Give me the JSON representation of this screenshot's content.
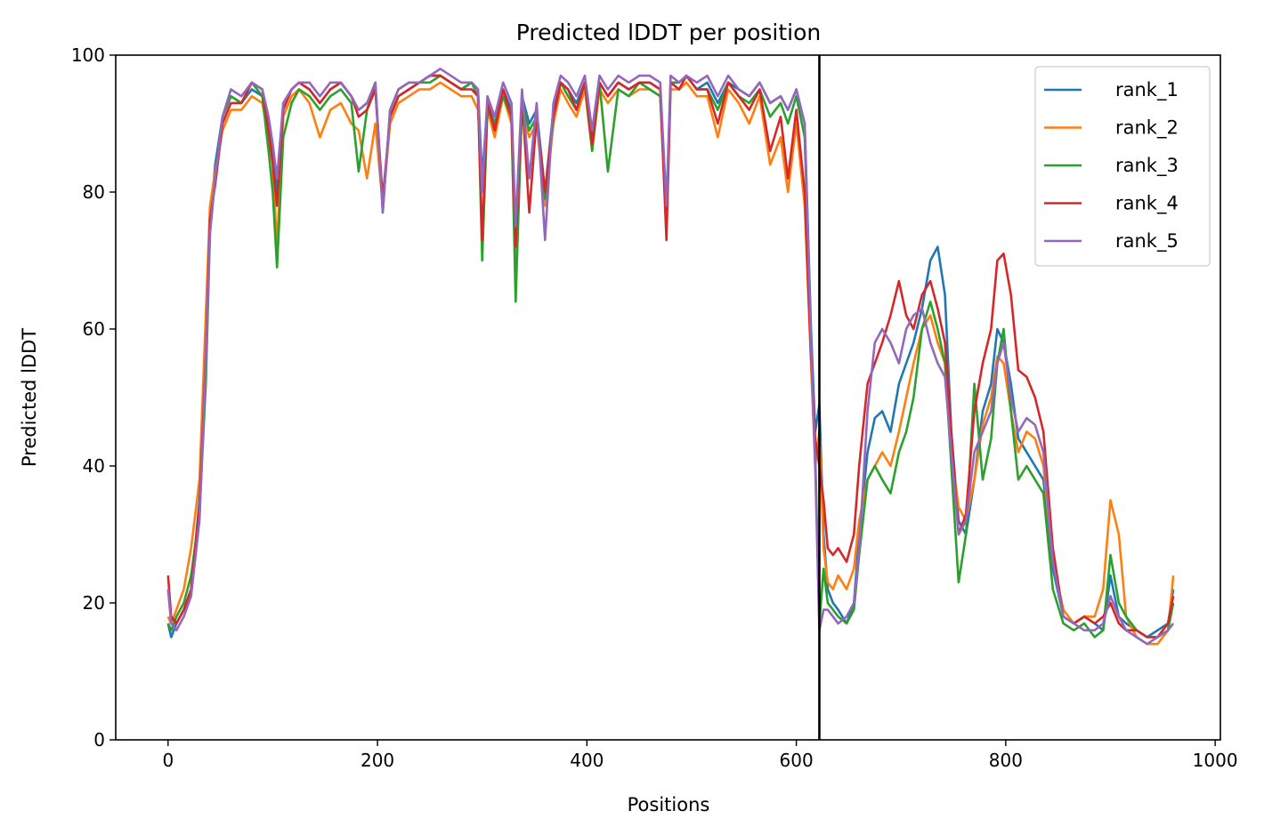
{
  "chart_data": {
    "type": "line",
    "title": "Predicted lDDT per position",
    "xlabel": "Positions",
    "ylabel": "Predicted lDDT",
    "xlim": [
      -50,
      1005
    ],
    "ylim": [
      0,
      100
    ],
    "xticks": [
      0,
      200,
      400,
      600,
      800,
      1000
    ],
    "yticks": [
      0,
      20,
      40,
      60,
      80,
      100
    ],
    "grid": false,
    "legend_position": "top-right",
    "chain_boundary_x": 622,
    "series": [
      {
        "name": "rank_1",
        "color": "#1f77b4",
        "x": [
          0,
          3,
          8,
          15,
          22,
          30,
          36,
          40,
          45,
          52,
          60,
          70,
          80,
          90,
          96,
          100,
          104,
          110,
          118,
          125,
          135,
          145,
          155,
          165,
          175,
          182,
          190,
          198,
          205,
          212,
          220,
          230,
          240,
          250,
          260,
          270,
          280,
          290,
          296,
          300,
          305,
          312,
          320,
          328,
          332,
          338,
          345,
          352,
          360,
          368,
          375,
          382,
          390,
          398,
          405,
          412,
          420,
          430,
          440,
          450,
          460,
          470,
          476,
          480,
          488,
          495,
          505,
          515,
          525,
          535,
          545,
          555,
          565,
          575,
          585,
          592,
          600,
          608,
          614,
          618,
          622,
          626,
          630,
          635,
          640,
          648,
          655,
          660,
          668,
          675,
          682,
          690,
          698,
          705,
          712,
          720,
          728,
          735,
          742,
          748,
          755,
          762,
          770,
          778,
          786,
          792,
          798,
          805,
          812,
          820,
          828,
          836,
          845,
          855,
          865,
          875,
          885,
          893,
          900,
          908,
          915,
          925,
          935,
          945,
          955,
          960
        ],
        "y": [
          17,
          15,
          17,
          19,
          22,
          35,
          55,
          75,
          84,
          91,
          94,
          93,
          95,
          94,
          90,
          86,
          80,
          93,
          95,
          96,
          95,
          93,
          95,
          96,
          94,
          92,
          93,
          95,
          78,
          91,
          94,
          95,
          96,
          97,
          97,
          96,
          95,
          96,
          95,
          82,
          93,
          90,
          95,
          92,
          70,
          94,
          90,
          92,
          80,
          92,
          96,
          95,
          93,
          96,
          88,
          96,
          94,
          96,
          95,
          96,
          96,
          95,
          77,
          96,
          96,
          97,
          95,
          96,
          93,
          96,
          95,
          94,
          96,
          93,
          94,
          92,
          95,
          90,
          60,
          45,
          49,
          30,
          22,
          20,
          19,
          17,
          20,
          30,
          42,
          47,
          48,
          45,
          52,
          55,
          58,
          63,
          70,
          72,
          65,
          45,
          32,
          30,
          38,
          48,
          52,
          60,
          58,
          52,
          44,
          42,
          40,
          38,
          25,
          18,
          17,
          18,
          17,
          16,
          24,
          18,
          17,
          16,
          15,
          16,
          17,
          22
        ]
      },
      {
        "name": "rank_2",
        "color": "#ff7f0e",
        "x": [
          0,
          3,
          8,
          15,
          22,
          30,
          36,
          40,
          45,
          52,
          60,
          70,
          80,
          90,
          96,
          100,
          104,
          110,
          118,
          125,
          135,
          145,
          155,
          165,
          175,
          182,
          190,
          198,
          205,
          212,
          220,
          230,
          240,
          250,
          260,
          270,
          280,
          290,
          296,
          300,
          305,
          312,
          320,
          328,
          332,
          338,
          345,
          352,
          360,
          368,
          375,
          382,
          390,
          398,
          405,
          412,
          420,
          430,
          440,
          450,
          460,
          470,
          476,
          480,
          488,
          495,
          505,
          515,
          525,
          535,
          545,
          555,
          565,
          575,
          585,
          592,
          600,
          608,
          614,
          618,
          622,
          626,
          630,
          635,
          640,
          648,
          655,
          660,
          668,
          675,
          682,
          690,
          698,
          705,
          712,
          720,
          728,
          735,
          742,
          748,
          755,
          762,
          770,
          778,
          786,
          792,
          798,
          805,
          812,
          820,
          828,
          836,
          845,
          855,
          865,
          875,
          885,
          893,
          900,
          908,
          915,
          925,
          935,
          945,
          955,
          960
        ],
        "y": [
          18,
          17,
          19,
          22,
          28,
          38,
          62,
          78,
          83,
          89,
          92,
          92,
          94,
          93,
          88,
          84,
          72,
          91,
          94,
          95,
          93,
          88,
          92,
          93,
          90,
          89,
          82,
          90,
          78,
          90,
          93,
          94,
          95,
          95,
          96,
          95,
          94,
          94,
          92,
          80,
          92,
          88,
          94,
          90,
          68,
          92,
          88,
          90,
          78,
          90,
          95,
          93,
          91,
          95,
          86,
          95,
          93,
          95,
          94,
          95,
          95,
          94,
          75,
          95,
          95,
          96,
          94,
          94,
          88,
          95,
          93,
          90,
          94,
          84,
          88,
          80,
          90,
          78,
          55,
          40,
          45,
          28,
          23,
          22,
          24,
          22,
          25,
          32,
          38,
          40,
          42,
          40,
          45,
          50,
          55,
          60,
          62,
          58,
          55,
          42,
          34,
          32,
          38,
          46,
          50,
          56,
          55,
          48,
          42,
          45,
          44,
          40,
          26,
          19,
          17,
          18,
          18,
          22,
          35,
          30,
          18,
          15,
          14,
          14,
          16,
          24
        ]
      },
      {
        "name": "rank_3",
        "color": "#2ca02c",
        "x": [
          0,
          3,
          8,
          15,
          22,
          30,
          36,
          40,
          45,
          52,
          60,
          70,
          80,
          90,
          96,
          100,
          104,
          110,
          118,
          125,
          135,
          145,
          155,
          165,
          175,
          182,
          190,
          198,
          205,
          212,
          220,
          230,
          240,
          250,
          260,
          270,
          280,
          290,
          296,
          300,
          305,
          312,
          320,
          328,
          332,
          338,
          345,
          352,
          360,
          368,
          375,
          382,
          390,
          398,
          405,
          412,
          420,
          430,
          440,
          450,
          460,
          470,
          476,
          480,
          488,
          495,
          505,
          515,
          525,
          535,
          545,
          555,
          565,
          575,
          585,
          592,
          600,
          608,
          614,
          618,
          622,
          626,
          630,
          635,
          640,
          648,
          655,
          660,
          668,
          675,
          682,
          690,
          698,
          705,
          712,
          720,
          728,
          735,
          742,
          748,
          755,
          762,
          770,
          778,
          786,
          792,
          798,
          805,
          812,
          820,
          828,
          836,
          845,
          855,
          865,
          875,
          885,
          893,
          900,
          908,
          915,
          925,
          935,
          945,
          955,
          960
        ],
        "y": [
          17,
          16,
          18,
          20,
          24,
          33,
          52,
          74,
          82,
          91,
          94,
          93,
          96,
          94,
          86,
          80,
          69,
          88,
          93,
          95,
          94,
          92,
          94,
          95,
          93,
          83,
          92,
          96,
          77,
          92,
          95,
          96,
          96,
          96,
          97,
          96,
          95,
          96,
          94,
          70,
          92,
          90,
          94,
          91,
          64,
          93,
          89,
          91,
          79,
          91,
          96,
          94,
          92,
          96,
          86,
          96,
          83,
          95,
          94,
          96,
          95,
          94,
          76,
          96,
          96,
          97,
          95,
          95,
          92,
          96,
          94,
          93,
          95,
          91,
          93,
          90,
          94,
          88,
          58,
          42,
          17,
          25,
          20,
          19,
          18,
          17,
          19,
          27,
          38,
          40,
          38,
          36,
          42,
          45,
          50,
          60,
          64,
          60,
          55,
          40,
          23,
          30,
          52,
          38,
          44,
          55,
          60,
          48,
          38,
          40,
          38,
          36,
          22,
          17,
          16,
          17,
          15,
          16,
          27,
          20,
          18,
          16,
          15,
          15,
          16,
          20
        ]
      },
      {
        "name": "rank_4",
        "color": "#d62728",
        "x": [
          0,
          3,
          8,
          15,
          22,
          30,
          36,
          40,
          45,
          52,
          60,
          70,
          80,
          90,
          96,
          100,
          104,
          110,
          118,
          125,
          135,
          145,
          155,
          165,
          175,
          182,
          190,
          198,
          205,
          212,
          220,
          230,
          240,
          250,
          260,
          270,
          280,
          290,
          296,
          300,
          305,
          312,
          320,
          328,
          332,
          338,
          345,
          352,
          360,
          368,
          375,
          382,
          390,
          398,
          405,
          412,
          420,
          430,
          440,
          450,
          460,
          470,
          476,
          480,
          488,
          495,
          505,
          515,
          525,
          535,
          545,
          555,
          565,
          575,
          585,
          592,
          600,
          608,
          614,
          618,
          622,
          626,
          630,
          635,
          640,
          648,
          655,
          660,
          668,
          675,
          682,
          690,
          698,
          705,
          712,
          720,
          728,
          735,
          742,
          748,
          755,
          762,
          770,
          778,
          786,
          792,
          798,
          805,
          812,
          820,
          828,
          836,
          845,
          855,
          865,
          875,
          885,
          893,
          900,
          908,
          915,
          925,
          935,
          945,
          955,
          960
        ],
        "y": [
          24,
          18,
          17,
          19,
          22,
          34,
          56,
          76,
          81,
          90,
          93,
          93,
          96,
          95,
          89,
          84,
          78,
          92,
          95,
          96,
          95,
          93,
          95,
          96,
          94,
          91,
          92,
          95,
          79,
          91,
          94,
          95,
          96,
          97,
          97,
          96,
          95,
          95,
          94,
          73,
          93,
          89,
          95,
          91,
          72,
          94,
          77,
          91,
          80,
          91,
          96,
          95,
          92,
          96,
          87,
          96,
          94,
          96,
          95,
          96,
          96,
          95,
          73,
          96,
          95,
          97,
          95,
          95,
          90,
          96,
          94,
          92,
          95,
          86,
          91,
          82,
          92,
          80,
          56,
          44,
          40,
          35,
          28,
          27,
          28,
          26,
          30,
          40,
          52,
          55,
          58,
          62,
          67,
          62,
          60,
          65,
          67,
          63,
          58,
          45,
          30,
          33,
          48,
          55,
          60,
          70,
          71,
          65,
          54,
          53,
          50,
          45,
          28,
          18,
          17,
          18,
          17,
          18,
          20,
          17,
          16,
          16,
          15,
          15,
          17,
          21
        ]
      },
      {
        "name": "rank_5",
        "color": "#9467bd",
        "x": [
          0,
          3,
          8,
          15,
          22,
          30,
          36,
          40,
          45,
          52,
          60,
          70,
          80,
          90,
          96,
          100,
          104,
          110,
          118,
          125,
          135,
          145,
          155,
          165,
          175,
          182,
          190,
          198,
          205,
          212,
          220,
          230,
          240,
          250,
          260,
          270,
          280,
          290,
          296,
          300,
          305,
          312,
          320,
          328,
          332,
          338,
          345,
          352,
          360,
          368,
          375,
          382,
          390,
          398,
          405,
          412,
          420,
          430,
          440,
          450,
          460,
          470,
          476,
          480,
          488,
          495,
          505,
          515,
          525,
          535,
          545,
          555,
          565,
          575,
          585,
          592,
          600,
          608,
          614,
          618,
          622,
          626,
          630,
          635,
          640,
          648,
          655,
          660,
          668,
          675,
          682,
          690,
          698,
          705,
          712,
          720,
          728,
          735,
          742,
          748,
          755,
          762,
          770,
          778,
          786,
          792,
          798,
          805,
          812,
          820,
          828,
          836,
          845,
          855,
          865,
          875,
          885,
          893,
          900,
          908,
          915,
          925,
          935,
          945,
          955,
          960
        ],
        "y": [
          22,
          17,
          16,
          18,
          21,
          32,
          55,
          74,
          82,
          91,
          95,
          94,
          96,
          95,
          91,
          87,
          82,
          93,
          95,
          96,
          96,
          94,
          96,
          96,
          94,
          92,
          93,
          96,
          77,
          92,
          95,
          96,
          96,
          97,
          98,
          97,
          96,
          96,
          95,
          80,
          94,
          91,
          96,
          93,
          75,
          95,
          82,
          93,
          73,
          93,
          97,
          96,
          94,
          97,
          89,
          97,
          95,
          97,
          96,
          97,
          97,
          96,
          78,
          97,
          96,
          97,
          96,
          97,
          94,
          97,
          95,
          94,
          96,
          93,
          94,
          92,
          95,
          90,
          58,
          40,
          16,
          19,
          19,
          18,
          17,
          18,
          20,
          28,
          48,
          58,
          60,
          58,
          55,
          60,
          62,
          63,
          58,
          55,
          53,
          42,
          30,
          32,
          42,
          45,
          48,
          55,
          58,
          50,
          45,
          47,
          46,
          42,
          26,
          18,
          17,
          16,
          16,
          17,
          21,
          18,
          16,
          15,
          14,
          15,
          16,
          17
        ]
      }
    ]
  }
}
